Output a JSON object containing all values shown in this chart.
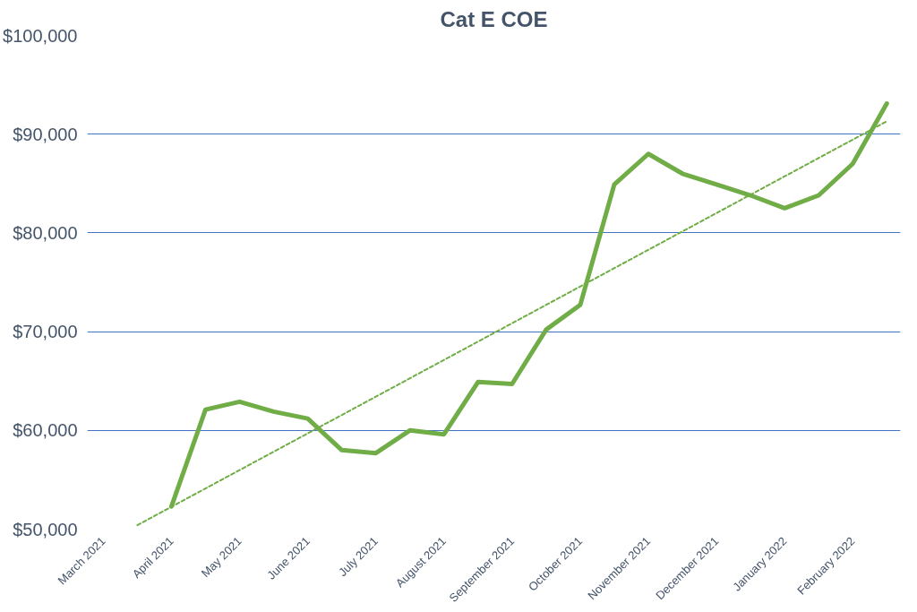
{
  "chart_data": {
    "type": "line",
    "title": "Cat E COE",
    "categories": [
      "March 2021",
      null,
      "April 2021",
      null,
      "May 2021",
      null,
      "June 2021",
      null,
      "July 2021",
      null,
      "August 2021",
      null,
      "September 2021",
      null,
      "October 2021",
      null,
      "November 2021",
      null,
      "December 2021",
      null,
      "January 2022",
      null,
      "February 2022",
      null
    ],
    "ylim": [
      50000,
      100000
    ],
    "yticks": [
      {
        "value": 50000,
        "label": "$50,000"
      },
      {
        "value": 60000,
        "label": "$60,000"
      },
      {
        "value": 70000,
        "label": "$70,000"
      },
      {
        "value": 80000,
        "label": "$80,000"
      },
      {
        "value": 90000,
        "label": "$90,000"
      },
      {
        "value": 100000,
        "label": "$100,000"
      }
    ],
    "grid": "y",
    "series": [
      {
        "color": "#70ad47",
        "line_style": "solid",
        "values": [
          null,
          null,
          52300,
          62100,
          62900,
          61900,
          61200,
          58000,
          57700,
          60000,
          59600,
          64900,
          64700,
          70200,
          72700,
          84900,
          88000,
          86000,
          84900,
          83800,
          82500,
          83800,
          87000,
          93100
        ]
      },
      {
        "type": "line",
        "color": "#70ad47",
        "line_style": "dashed",
        "values": [
          null,
          50400,
          null,
          null,
          null,
          null,
          null,
          null,
          null,
          null,
          null,
          null,
          null,
          null,
          null,
          null,
          null,
          null,
          null,
          null,
          null,
          null,
          null,
          91300
        ]
      }
    ]
  }
}
